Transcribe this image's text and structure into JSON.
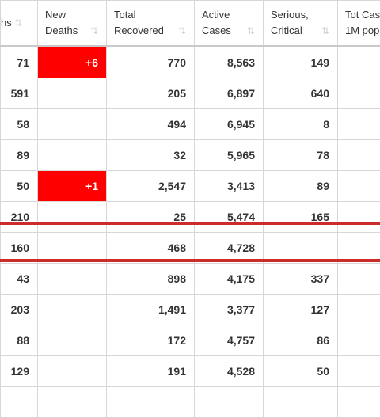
{
  "colors": {
    "highlight": "#ff0000",
    "separator": "#cc2b2b"
  },
  "headers": [
    {
      "l1": "",
      "l2": "hs"
    },
    {
      "l1": "New",
      "l2": "Deaths"
    },
    {
      "l1": "Total",
      "l2": "Recovered"
    },
    {
      "l1": "Active",
      "l2": "Cases"
    },
    {
      "l1": "Serious,",
      "l2": "Critical"
    },
    {
      "l1": "Tot Cas",
      "l2": "1M pop"
    }
  ],
  "sort_icon": "⇅",
  "rows": [
    [
      "71",
      "+6",
      "770",
      "8,563",
      "149",
      ""
    ],
    [
      "591",
      "",
      "205",
      "6,897",
      "640",
      ""
    ],
    [
      "58",
      "",
      "494",
      "6,945",
      "8",
      ""
    ],
    [
      "89",
      "",
      "32",
      "5,965",
      "78",
      ""
    ],
    [
      "50",
      "+1",
      "2,547",
      "3,413",
      "89",
      ""
    ],
    [
      "210",
      "",
      "25",
      "5,474",
      "165",
      ""
    ],
    [
      "160",
      "",
      "468",
      "4,728",
      "",
      ""
    ],
    [
      "43",
      "",
      "898",
      "4,175",
      "337",
      ""
    ],
    [
      "203",
      "",
      "1,491",
      "3,377",
      "127",
      ""
    ],
    [
      "88",
      "",
      "172",
      "4,757",
      "86",
      ""
    ],
    [
      "129",
      "",
      "191",
      "4,528",
      "50",
      ""
    ],
    [
      "",
      "",
      "",
      "",
      "",
      ""
    ]
  ]
}
